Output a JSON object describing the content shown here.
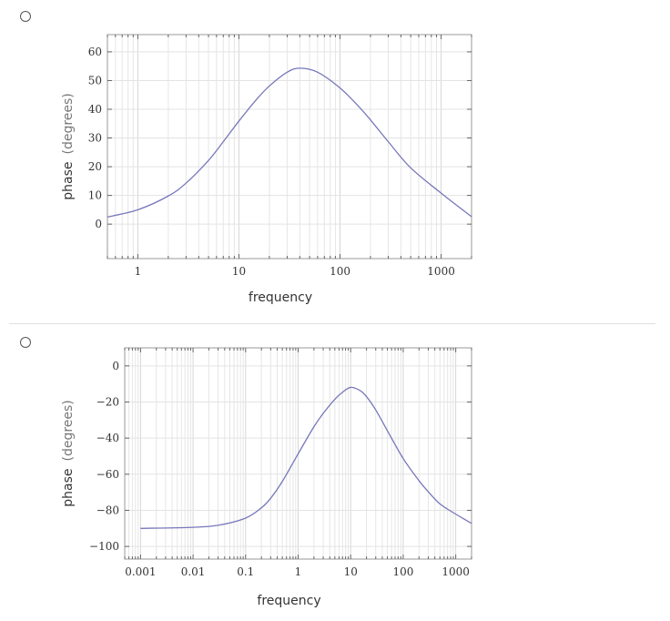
{
  "options": [
    {
      "radio_selected": false,
      "chart_data": {
        "type": "line",
        "xscale": "log",
        "xlim": [
          0.5,
          2000
        ],
        "ylim": [
          -12,
          66
        ],
        "xticks": [
          1,
          10,
          100,
          1000
        ],
        "xtick_labels": [
          "1",
          "10",
          "100",
          "1000"
        ],
        "yticks": [
          0,
          10,
          20,
          30,
          40,
          50,
          60
        ],
        "ytick_labels": [
          "0",
          "10",
          "20",
          "30",
          "40",
          "50",
          "60"
        ],
        "xlabel": "frequency",
        "ylabel": "phase",
        "ylabel_unit": "(degrees)",
        "grid": true,
        "line_color": "#7777bb",
        "series": [
          {
            "x": [
              0.5,
              1,
              2,
              3,
              5,
              7,
              10,
              15,
              20,
              30,
              40,
              60,
              100,
              150,
              200,
              300,
              500,
              1000,
              2000
            ],
            "y": [
              2.5,
              5,
              9.8,
              14.3,
              22.2,
              28.7,
              35.9,
              43.5,
              48.1,
              52.9,
              54.3,
              52.9,
              47.4,
              41.3,
              36.3,
              28.7,
              19.6,
              10.8,
              2.6
            ]
          }
        ]
      }
    },
    {
      "radio_selected": false,
      "chart_data": {
        "type": "line",
        "xscale": "log",
        "xlim": [
          0.0005,
          2000
        ],
        "ylim": [
          -107,
          10
        ],
        "xticks": [
          0.001,
          0.01,
          0.1,
          1,
          10,
          100,
          1000
        ],
        "xtick_labels": [
          "0.001",
          "0.01",
          "0.1",
          "1",
          "10",
          "100",
          "1000"
        ],
        "yticks": [
          0,
          -20,
          -40,
          -60,
          -80,
          -100
        ],
        "ytick_labels": [
          "0",
          "−20",
          "−40",
          "−60",
          "−80",
          "−100"
        ],
        "xlabel": "frequency",
        "ylabel": "phase",
        "ylabel_unit": "(degrees)",
        "grid": true,
        "line_color": "#7777bb",
        "series": [
          {
            "x": [
              0.001,
              0.01,
              0.03,
              0.1,
              0.2,
              0.3,
              0.5,
              1,
              2,
              3,
              5,
              7,
              10,
              15,
              20,
              30,
              50,
              100,
              200,
              300,
              500,
              1000,
              2000
            ],
            "y": [
              -90,
              -89.4,
              -88.3,
              -84.3,
              -78.6,
              -73.3,
              -64,
              -48.7,
              -33.7,
              -26.3,
              -18.5,
              -14.6,
              -11.9,
              -13.6,
              -17,
              -24.4,
              -35.9,
              -51.3,
              -63.6,
              -69.7,
              -76.4,
              -82.1,
              -87.2
            ]
          }
        ]
      }
    }
  ]
}
